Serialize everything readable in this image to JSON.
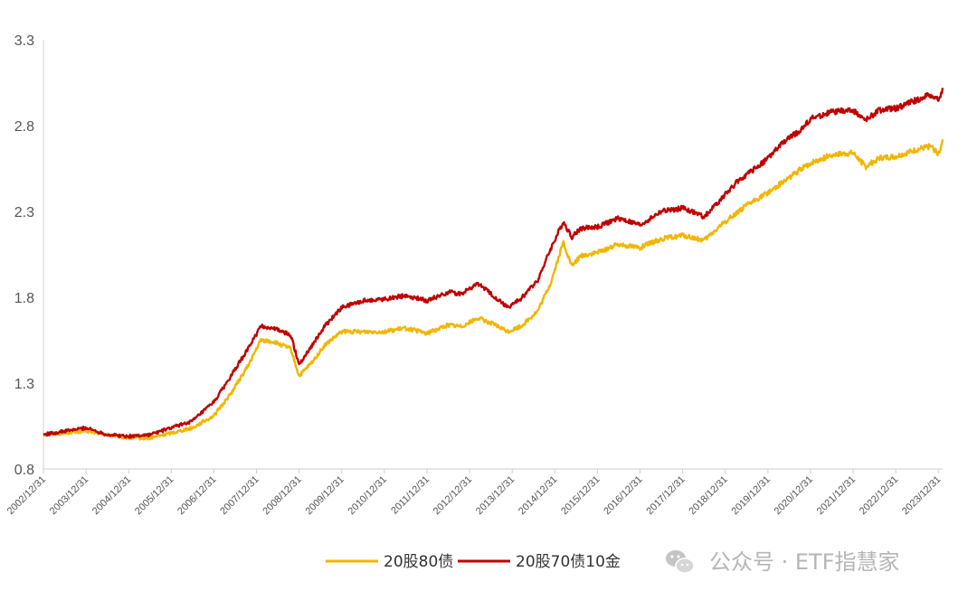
{
  "chart_data": {
    "type": "line",
    "xlabel": "",
    "ylabel": "",
    "ylim": [
      0.8,
      3.3
    ],
    "y_ticks": [
      "0.8",
      "1.3",
      "1.8",
      "2.3",
      "2.8",
      "3.3"
    ],
    "x_ticks": [
      "2002/12/31",
      "2003/12/31",
      "2004/12/31",
      "2005/12/31",
      "2006/12/31",
      "2007/12/31",
      "2008/12/31",
      "2009/12/31",
      "2010/12/31",
      "2011/12/31",
      "2012/12/31",
      "2013/12/31",
      "2014/12/31",
      "2015/12/31",
      "2016/12/31",
      "2017/12/31",
      "2018/12/31",
      "2019/12/31",
      "2020/12/31",
      "2021/12/31",
      "2022/12/31",
      "2023/12/31"
    ],
    "grid": false,
    "legend_position": "bottom-center",
    "x": [
      2003.0,
      2003.5,
      2004.0,
      2004.5,
      2005.0,
      2005.5,
      2006.0,
      2006.5,
      2007.0,
      2007.4,
      2007.8,
      2008.1,
      2008.4,
      2008.8,
      2009.0,
      2009.3,
      2009.6,
      2010.0,
      2010.5,
      2011.0,
      2011.5,
      2012.0,
      2012.5,
      2012.8,
      2013.2,
      2013.5,
      2013.9,
      2014.2,
      2014.6,
      2014.9,
      2015.2,
      2015.4,
      2015.6,
      2016.0,
      2016.5,
      2017.0,
      2017.5,
      2018.0,
      2018.5,
      2018.9,
      2019.3,
      2019.6,
      2020.0,
      2020.4,
      2020.8,
      2021.0,
      2021.5,
      2022.0,
      2022.3,
      2022.6,
      2023.0,
      2023.5,
      2023.8,
      2024.0,
      2024.05,
      2024.1
    ],
    "series": [
      {
        "name": "20股80债",
        "color": "#F2B500",
        "values": [
          1.0,
          1.01,
          1.02,
          1.0,
          0.98,
          0.98,
          1.01,
          1.04,
          1.11,
          1.24,
          1.4,
          1.55,
          1.54,
          1.5,
          1.34,
          1.42,
          1.52,
          1.6,
          1.6,
          1.6,
          1.62,
          1.59,
          1.64,
          1.63,
          1.68,
          1.65,
          1.6,
          1.63,
          1.72,
          1.88,
          2.12,
          1.98,
          2.04,
          2.06,
          2.11,
          2.09,
          2.14,
          2.16,
          2.13,
          2.22,
          2.3,
          2.35,
          2.41,
          2.48,
          2.55,
          2.58,
          2.63,
          2.64,
          2.56,
          2.61,
          2.62,
          2.66,
          2.68,
          2.64,
          2.65,
          2.72
        ]
      },
      {
        "name": "20股70债10金",
        "color": "#C00000",
        "values": [
          1.0,
          1.02,
          1.04,
          1.0,
          0.99,
          1.0,
          1.04,
          1.08,
          1.19,
          1.34,
          1.5,
          1.63,
          1.62,
          1.58,
          1.41,
          1.52,
          1.63,
          1.74,
          1.78,
          1.79,
          1.81,
          1.78,
          1.83,
          1.82,
          1.88,
          1.82,
          1.74,
          1.79,
          1.9,
          2.08,
          2.24,
          2.15,
          2.2,
          2.21,
          2.26,
          2.22,
          2.3,
          2.32,
          2.27,
          2.37,
          2.48,
          2.53,
          2.61,
          2.71,
          2.78,
          2.84,
          2.88,
          2.89,
          2.83,
          2.89,
          2.9,
          2.95,
          2.98,
          2.95,
          2.96,
          3.02
        ]
      }
    ]
  },
  "legend": {
    "items": [
      {
        "label": "20股80债",
        "color": "#F2B500"
      },
      {
        "label": "20股70债10金",
        "color": "#C00000"
      }
    ]
  },
  "watermark": {
    "text": "公众号 · ETF指慧家",
    "icon": "wechat-icon"
  }
}
